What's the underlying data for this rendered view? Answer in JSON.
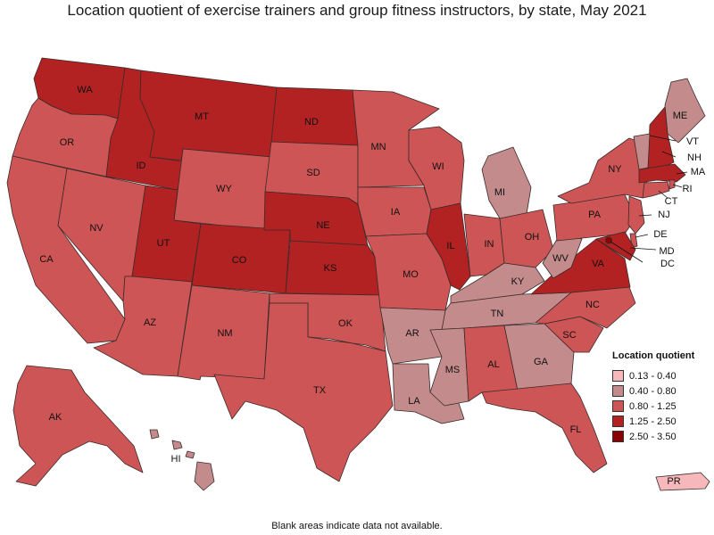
{
  "title": "Location quotient of exercise trainers and group fitness instructors, by state, May 2021",
  "footnote": "Blank areas indicate data not available.",
  "legend": {
    "title": "Location quotient",
    "items": [
      {
        "label": "0.13 - 0.40",
        "color": "#f6b8bb"
      },
      {
        "label": "0.40 - 0.80",
        "color": "#c38b8b"
      },
      {
        "label": "0.80 - 1.25",
        "color": "#cd5555"
      },
      {
        "label": "1.25 - 2.50",
        "color": "#b22222"
      },
      {
        "label": "2.50 - 3.50",
        "color": "#8b0000"
      }
    ]
  },
  "states": [
    {
      "abbr": "WA",
      "class": 3
    },
    {
      "abbr": "OR",
      "class": 2
    },
    {
      "abbr": "CA",
      "class": 2
    },
    {
      "abbr": "ID",
      "class": 3
    },
    {
      "abbr": "NV",
      "class": 2
    },
    {
      "abbr": "MT",
      "class": 3
    },
    {
      "abbr": "WY",
      "class": 2
    },
    {
      "abbr": "UT",
      "class": 3
    },
    {
      "abbr": "AZ",
      "class": 2
    },
    {
      "abbr": "CO",
      "class": 3
    },
    {
      "abbr": "NM",
      "class": 2
    },
    {
      "abbr": "ND",
      "class": 3
    },
    {
      "abbr": "SD",
      "class": 2
    },
    {
      "abbr": "NE",
      "class": 3
    },
    {
      "abbr": "KS",
      "class": 3
    },
    {
      "abbr": "OK",
      "class": 2
    },
    {
      "abbr": "TX",
      "class": 2
    },
    {
      "abbr": "MN",
      "class": 2
    },
    {
      "abbr": "IA",
      "class": 2
    },
    {
      "abbr": "MO",
      "class": 2
    },
    {
      "abbr": "AR",
      "class": 1
    },
    {
      "abbr": "LA",
      "class": 1
    },
    {
      "abbr": "WI",
      "class": 2
    },
    {
      "abbr": "IL",
      "class": 3
    },
    {
      "abbr": "MI",
      "class": 1
    },
    {
      "abbr": "IN",
      "class": 2
    },
    {
      "abbr": "OH",
      "class": 2
    },
    {
      "abbr": "KY",
      "class": 1
    },
    {
      "abbr": "TN",
      "class": 1
    },
    {
      "abbr": "MS",
      "class": 1
    },
    {
      "abbr": "AL",
      "class": 2
    },
    {
      "abbr": "GA",
      "class": 1
    },
    {
      "abbr": "FL",
      "class": 2
    },
    {
      "abbr": "SC",
      "class": 2
    },
    {
      "abbr": "NC",
      "class": 2
    },
    {
      "abbr": "VA",
      "class": 3
    },
    {
      "abbr": "WV",
      "class": 1
    },
    {
      "abbr": "PA",
      "class": 2
    },
    {
      "abbr": "NY",
      "class": 2
    },
    {
      "abbr": "ME",
      "class": 1
    },
    {
      "abbr": "NH",
      "class": 3
    },
    {
      "abbr": "VT",
      "class": 1
    },
    {
      "abbr": "MA",
      "class": 3
    },
    {
      "abbr": "RI",
      "class": 2
    },
    {
      "abbr": "CT",
      "class": 2
    },
    {
      "abbr": "NJ",
      "class": 2
    },
    {
      "abbr": "DE",
      "class": 2
    },
    {
      "abbr": "MD",
      "class": 3
    },
    {
      "abbr": "DC",
      "class": 4
    },
    {
      "abbr": "AK",
      "class": 2
    },
    {
      "abbr": "HI",
      "class": 1
    },
    {
      "abbr": "PR",
      "class": 0
    }
  ]
}
